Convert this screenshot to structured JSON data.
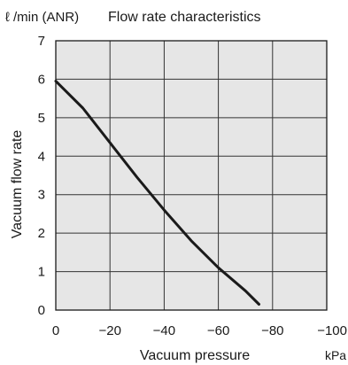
{
  "chart_data": {
    "type": "line",
    "title": "Flow rate characteristics",
    "unit_label": "ℓ /min (ANR)",
    "xlabel": "Vacuum pressure",
    "xunit": "kPa",
    "ylabel": "Vacuum flow rate",
    "xlim": [
      0,
      -100
    ],
    "ylim": [
      0,
      7
    ],
    "x_ticks": [
      0,
      -20,
      -40,
      -60,
      -80,
      -100
    ],
    "x_tick_labels": [
      "0",
      "−20",
      "−40",
      "−60",
      "−80",
      "−100"
    ],
    "y_ticks": [
      0,
      1,
      2,
      3,
      4,
      5,
      6,
      7
    ],
    "y_tick_labels": [
      "0",
      "1",
      "2",
      "3",
      "4",
      "5",
      "6",
      "7"
    ],
    "grid": true,
    "background_color": "#e6e6e6",
    "line_color": "#1a1a1a",
    "series": [
      {
        "x": [
          0,
          -10,
          -20,
          -30,
          -40,
          -50,
          -60,
          -70,
          -75
        ],
        "y": [
          5.95,
          5.25,
          4.35,
          3.45,
          2.6,
          1.8,
          1.1,
          0.5,
          0.15
        ]
      }
    ]
  }
}
